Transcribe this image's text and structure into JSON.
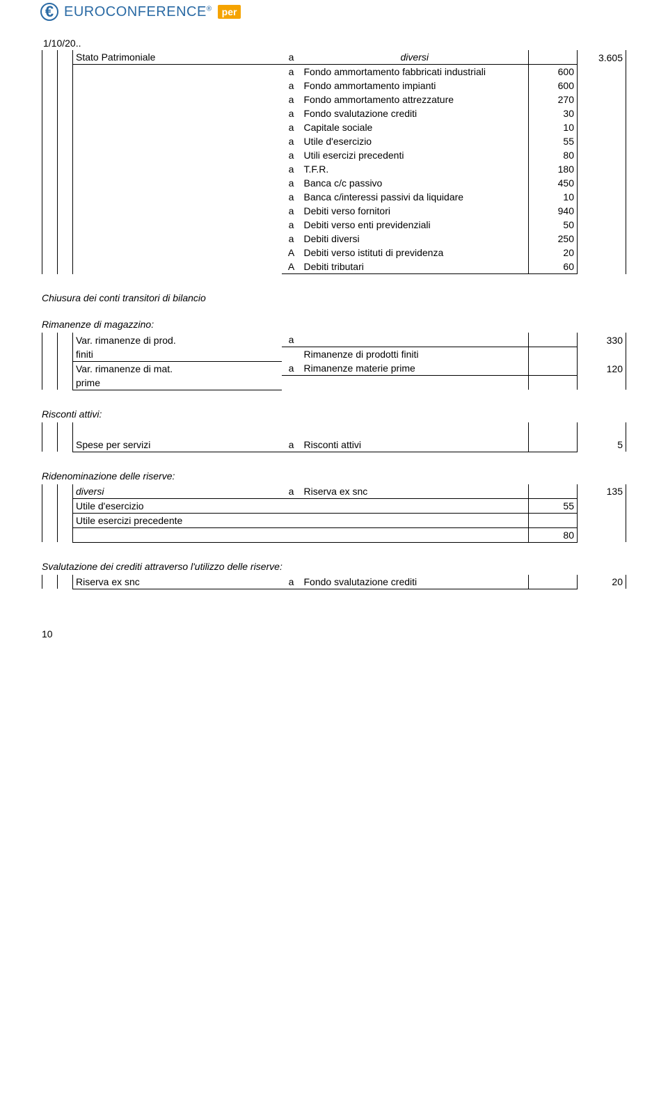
{
  "logo": {
    "brand": "EUROCONFERENCE",
    "tag": "per"
  },
  "date": "1/10/20..",
  "main": {
    "headerAccount": "Stato Patrimoniale",
    "headerMid": "a",
    "headerTo": "diversi",
    "headerTotal": "3.605",
    "rows": [
      {
        "mid": "a",
        "acc": "Fondo ammortamento fabbricati industriali",
        "val": "600"
      },
      {
        "mid": "a",
        "acc": "Fondo ammortamento impianti",
        "val": "600"
      },
      {
        "mid": "a",
        "acc": "Fondo ammortamento attrezzature",
        "val": "270"
      },
      {
        "mid": "a",
        "acc": "Fondo svalutazione crediti",
        "val": "30"
      },
      {
        "mid": "a",
        "acc": "Capitale sociale",
        "val": "10"
      },
      {
        "mid": "a",
        "acc": "Utile d'esercizio",
        "val": "55"
      },
      {
        "mid": "a",
        "acc": "Utili esercizi precedenti",
        "val": "80"
      },
      {
        "mid": "a",
        "acc": "T.F.R.",
        "val": "180"
      },
      {
        "mid": "a",
        "acc": "Banca c/c passivo",
        "val": "450"
      },
      {
        "mid": "a",
        "acc": "Banca c/interessi passivi da liquidare",
        "val": "10"
      },
      {
        "mid": "a",
        "acc": "Debiti verso fornitori",
        "val": "940"
      },
      {
        "mid": "a",
        "acc": "Debiti verso enti previdenziali",
        "val": "50"
      },
      {
        "mid": "a",
        "acc": "Debiti diversi",
        "val": "250"
      },
      {
        "mid": "A",
        "acc": "Debiti verso istituti di previdenza",
        "val": "20"
      },
      {
        "mid": "A",
        "acc": "Debiti tributari",
        "val": "60"
      }
    ]
  },
  "closure": "Chiusura dei conti transitori di bilancio",
  "sections": [
    {
      "heading": "Rimanenze di magazzino:",
      "rows": [
        {
          "acc1": "Var. rimanenze di prod.",
          "acc2": "finiti",
          "mid": "a",
          "to1": "",
          "to2": "Rimanenze di prodotti finiti",
          "amt": "",
          "tot": "330"
        },
        {
          "acc1": "Var. rimanenze di mat.",
          "acc2": "prime",
          "mid": "a",
          "to1": "Rimanenze materie prime",
          "to2": "",
          "amt": "",
          "tot": "120"
        }
      ]
    },
    {
      "heading": "Risconti attivi:",
      "rows": [
        {
          "acc1": "Spese per servizi",
          "acc2": "",
          "mid": "a",
          "to1": "Risconti attivi",
          "to2": "",
          "amt": "",
          "tot": "5",
          "gap": true
        }
      ]
    },
    {
      "heading": "Ridenominazione delle riserve:",
      "rows": [
        {
          "acc1": "diversi",
          "acc2": "",
          "mid": "a",
          "to1": "Riserva ex snc",
          "to2": "",
          "amt": "",
          "tot": "135",
          "italicAcc": true
        },
        {
          "acc1": "Utile d'esercizio",
          "acc2": "",
          "mid": "",
          "to1": "",
          "to2": "",
          "amt": "55",
          "tot": ""
        },
        {
          "acc1": "Utile esercizi precedente",
          "acc2": "",
          "mid": "",
          "to1": "",
          "to2": "",
          "amt": "",
          "tot": ""
        },
        {
          "acc1": "",
          "acc2": "",
          "mid": "",
          "to1": "",
          "to2": "",
          "amt": "80",
          "tot": ""
        }
      ]
    },
    {
      "heading": "Svalutazione dei crediti attraverso l'utilizzo delle riserve:",
      "rows": [
        {
          "acc1": "Riserva ex snc",
          "acc2": "",
          "mid": "a",
          "to1": "Fondo svalutazione crediti",
          "to2": "",
          "amt": "",
          "tot": "20"
        }
      ]
    }
  ],
  "pageNumber": "10"
}
